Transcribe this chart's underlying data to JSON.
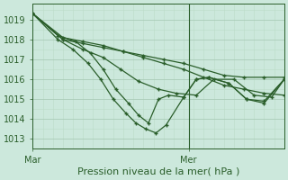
{
  "title": "Pression niveau de la mer( hPa )",
  "ylim": [
    1012.5,
    1019.8
  ],
  "yticks": [
    1013,
    1014,
    1015,
    1016,
    1017,
    1018,
    1019
  ],
  "bg_color": "#cce8dc",
  "grid_major_color": "#aaccb8",
  "grid_minor_color": "#bbddc8",
  "line_color": "#2a5e2a",
  "marker": "+",
  "markersize": 3,
  "linewidth": 0.9,
  "series": [
    {
      "x": [
        0,
        0.12,
        0.2,
        0.28,
        0.36,
        0.44,
        0.52,
        0.6,
        0.68,
        0.76,
        0.84,
        0.92,
        1.0
      ],
      "y": [
        1019.3,
        1018.0,
        1017.8,
        1017.6,
        1017.4,
        1017.2,
        1017.0,
        1016.8,
        1016.5,
        1016.2,
        1016.1,
        1016.1,
        1016.1
      ]
    },
    {
      "x": [
        0,
        0.12,
        0.2,
        0.28,
        0.36,
        0.44,
        0.52,
        0.6,
        0.68,
        0.76,
        0.84,
        0.92,
        1.0
      ],
      "y": [
        1019.3,
        1018.1,
        1017.9,
        1017.7,
        1017.4,
        1017.1,
        1016.8,
        1016.5,
        1016.1,
        1015.7,
        1015.5,
        1015.3,
        1015.2
      ]
    },
    {
      "x": [
        0,
        0.12,
        0.2,
        0.28,
        0.35,
        0.42,
        0.5,
        0.57,
        0.65,
        0.72,
        0.8,
        0.88,
        0.95,
        1.0
      ],
      "y": [
        1019.3,
        1018.0,
        1017.5,
        1017.1,
        1016.5,
        1015.9,
        1015.5,
        1015.3,
        1015.2,
        1016.0,
        1016.0,
        1015.2,
        1015.1,
        1016.0
      ]
    },
    {
      "x": [
        0,
        0.1,
        0.17,
        0.23,
        0.28,
        0.33,
        0.38,
        0.42,
        0.46,
        0.5,
        0.54,
        0.6,
        0.65,
        0.7,
        0.78,
        0.85,
        0.92,
        1.0
      ],
      "y": [
        1019.3,
        1018.2,
        1017.9,
        1017.3,
        1016.5,
        1015.5,
        1014.8,
        1014.2,
        1013.8,
        1015.0,
        1015.2,
        1015.1,
        1016.0,
        1016.1,
        1015.8,
        1015.0,
        1014.8,
        1016.0
      ]
    },
    {
      "x": [
        0,
        0.1,
        0.16,
        0.22,
        0.27,
        0.32,
        0.37,
        0.41,
        0.45,
        0.49,
        0.53,
        0.6,
        0.65,
        0.7,
        0.78,
        0.85,
        0.92,
        1.0
      ],
      "y": [
        1019.3,
        1018.0,
        1017.5,
        1016.8,
        1016.0,
        1015.0,
        1014.3,
        1013.8,
        1013.5,
        1013.3,
        1013.7,
        1015.1,
        1016.0,
        1016.1,
        1015.8,
        1015.0,
        1014.9,
        1016.0
      ]
    }
  ],
  "xtick_positions": [
    0.0,
    0.62
  ],
  "xtick_labels": [
    "Mar",
    "Mer"
  ],
  "vline_x": 0.62,
  "figsize": [
    3.2,
    2.0
  ],
  "dpi": 100
}
